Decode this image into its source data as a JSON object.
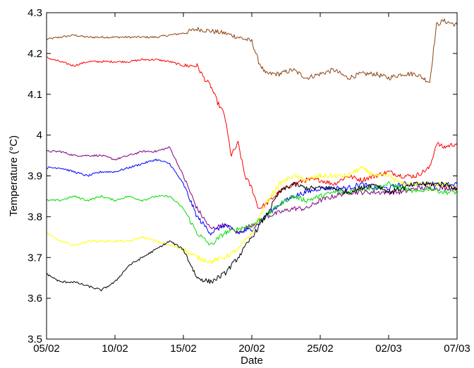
{
  "chart_data": {
    "type": "line",
    "xlabel": "Date",
    "ylabel": "Temperature (°C)",
    "xlim": [
      0,
      30
    ],
    "ylim": [
      3.5,
      4.3
    ],
    "x_ticks": [
      {
        "x": 0,
        "label": "05/02"
      },
      {
        "x": 5,
        "label": "10/02"
      },
      {
        "x": 10,
        "label": "15/02"
      },
      {
        "x": 15,
        "label": "20/02"
      },
      {
        "x": 20,
        "label": "25/02"
      },
      {
        "x": 25,
        "label": "02/03"
      },
      {
        "x": 30,
        "label": "07/03"
      }
    ],
    "y_ticks": [
      3.5,
      3.6,
      3.7,
      3.8,
      3.9,
      4.0,
      4.1,
      4.2,
      4.3
    ],
    "grid": false,
    "series": [
      {
        "color": "#8B4513",
        "x": [
          0,
          1,
          2,
          3,
          4,
          5,
          6,
          7,
          8,
          9,
          10,
          11,
          12,
          13,
          14,
          15,
          15.5,
          16,
          17,
          18,
          19,
          20,
          21,
          22,
          23,
          24,
          25,
          26,
          27,
          28,
          28.5,
          29,
          30
        ],
        "y": [
          4.235,
          4.24,
          4.245,
          4.24,
          4.24,
          4.24,
          4.24,
          4.24,
          4.24,
          4.245,
          4.25,
          4.26,
          4.255,
          4.25,
          4.24,
          4.23,
          4.18,
          4.15,
          4.15,
          4.16,
          4.14,
          4.15,
          4.16,
          4.14,
          4.15,
          4.15,
          4.14,
          4.15,
          4.15,
          4.13,
          4.27,
          4.28,
          4.27
        ]
      },
      {
        "color": "#ff0000",
        "x": [
          0,
          1,
          2,
          3,
          4,
          5,
          6,
          7,
          8,
          9,
          10,
          11,
          11.5,
          12,
          12.5,
          13,
          13.5,
          14,
          14.5,
          15,
          15.5,
          16,
          17,
          18,
          19,
          20,
          21,
          22,
          23,
          24,
          25,
          26,
          27,
          28,
          28.5,
          29,
          30
        ],
        "y": [
          4.19,
          4.18,
          4.17,
          4.18,
          4.18,
          4.18,
          4.18,
          4.185,
          4.185,
          4.18,
          4.17,
          4.17,
          4.14,
          4.12,
          4.08,
          4.05,
          3.95,
          3.98,
          3.9,
          3.87,
          3.82,
          3.83,
          3.86,
          3.88,
          3.89,
          3.89,
          3.88,
          3.9,
          3.89,
          3.9,
          3.91,
          3.9,
          3.9,
          3.92,
          3.98,
          3.97,
          3.98
        ]
      },
      {
        "color": "#800080",
        "x": [
          0,
          1,
          2,
          3,
          4,
          5,
          6,
          7,
          8,
          9,
          10,
          11,
          12,
          13,
          14,
          15,
          16,
          17,
          18,
          19,
          20,
          21,
          22,
          23,
          24,
          25,
          26,
          27,
          28,
          29,
          30
        ],
        "y": [
          3.96,
          3.96,
          3.95,
          3.95,
          3.95,
          3.94,
          3.95,
          3.96,
          3.96,
          3.97,
          3.9,
          3.82,
          3.77,
          3.78,
          3.76,
          3.78,
          3.8,
          3.81,
          3.82,
          3.82,
          3.84,
          3.85,
          3.86,
          3.86,
          3.86,
          3.86,
          3.86,
          3.87,
          3.87,
          3.87,
          3.87
        ]
      },
      {
        "color": "#0000ff",
        "x": [
          0,
          1,
          2,
          3,
          4,
          5,
          6,
          7,
          8,
          9,
          10,
          11,
          12,
          13,
          14,
          15,
          16,
          17,
          18,
          19,
          20,
          21,
          22,
          23,
          24,
          25,
          26,
          27,
          28,
          29,
          30
        ],
        "y": [
          3.92,
          3.92,
          3.91,
          3.9,
          3.91,
          3.91,
          3.92,
          3.93,
          3.94,
          3.93,
          3.88,
          3.8,
          3.76,
          3.78,
          3.76,
          3.77,
          3.8,
          3.83,
          3.85,
          3.86,
          3.87,
          3.87,
          3.87,
          3.88,
          3.87,
          3.87,
          3.88,
          3.88,
          3.88,
          3.88,
          3.88
        ]
      },
      {
        "color": "#00dd00",
        "x": [
          0,
          1,
          2,
          3,
          4,
          5,
          6,
          7,
          8,
          9,
          10,
          11,
          12,
          13,
          14,
          15,
          16,
          17,
          18,
          19,
          20,
          21,
          22,
          23,
          24,
          25,
          26,
          27,
          28,
          29,
          30
        ],
        "y": [
          3.84,
          3.84,
          3.85,
          3.84,
          3.85,
          3.84,
          3.85,
          3.84,
          3.85,
          3.85,
          3.82,
          3.76,
          3.73,
          3.76,
          3.77,
          3.78,
          3.8,
          3.83,
          3.85,
          3.84,
          3.85,
          3.86,
          3.86,
          3.87,
          3.87,
          3.88,
          3.87,
          3.86,
          3.87,
          3.86,
          3.86
        ]
      },
      {
        "color": "#ffff00",
        "x": [
          0,
          1,
          2,
          3,
          4,
          5,
          6,
          7,
          8,
          9,
          10,
          11,
          12,
          13,
          14,
          15,
          16,
          17,
          18,
          19,
          20,
          21,
          22,
          23,
          24,
          25,
          26,
          27,
          28,
          29,
          30
        ],
        "y": [
          3.76,
          3.74,
          3.73,
          3.74,
          3.74,
          3.74,
          3.74,
          3.75,
          3.74,
          3.73,
          3.72,
          3.7,
          3.69,
          3.7,
          3.72,
          3.76,
          3.83,
          3.88,
          3.9,
          3.89,
          3.9,
          3.9,
          3.9,
          3.92,
          3.9,
          3.9,
          3.88,
          3.88,
          3.88,
          3.88,
          3.87
        ]
      },
      {
        "color": "#000000",
        "x": [
          0,
          1,
          2,
          3,
          4,
          5,
          6,
          7,
          8,
          9,
          10,
          11,
          12,
          13,
          14,
          15,
          16,
          17,
          18,
          19,
          20,
          21,
          22,
          23,
          24,
          25,
          26,
          27,
          28,
          29,
          30
        ],
        "y": [
          3.66,
          3.64,
          3.64,
          3.63,
          3.62,
          3.64,
          3.68,
          3.7,
          3.72,
          3.74,
          3.72,
          3.65,
          3.64,
          3.66,
          3.7,
          3.75,
          3.8,
          3.86,
          3.88,
          3.87,
          3.87,
          3.87,
          3.86,
          3.87,
          3.88,
          3.86,
          3.87,
          3.88,
          3.88,
          3.88,
          3.87
        ]
      }
    ]
  }
}
